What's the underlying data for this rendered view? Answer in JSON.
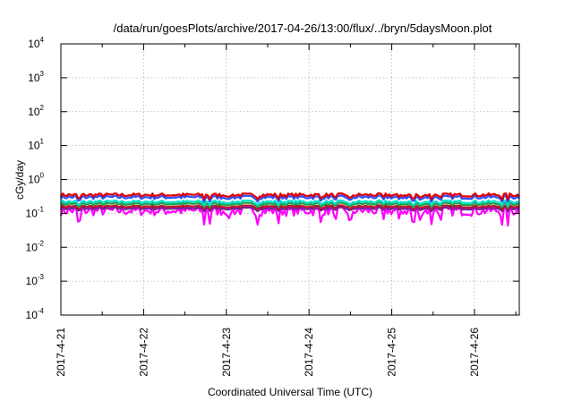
{
  "chart_data": {
    "type": "line",
    "title": "/data/run/goesPlots/archive/2017-04-26/13:00/flux/../bryn/5daysMoon.plot",
    "xlabel": "Coordinated Universal Time (UTC)",
    "ylabel": "cGy/day",
    "yscale": "log",
    "ylim": [
      0.0001,
      10000
    ],
    "xlim": [
      "2017-04-21",
      "2017-04-26 13:00"
    ],
    "x_ticks": [
      "2017-4-21",
      "2017-4-22",
      "2017-4-23",
      "2017-4-24",
      "2017-4-25",
      "2017-4-26"
    ],
    "y_ticks": [
      {
        "value": 0.0001,
        "base": "10",
        "exp": "-4"
      },
      {
        "value": 0.001,
        "base": "10",
        "exp": "-3"
      },
      {
        "value": 0.01,
        "base": "10",
        "exp": "-2"
      },
      {
        "value": 0.1,
        "base": "10",
        "exp": "-1"
      },
      {
        "value": 1,
        "base": "10",
        "exp": "0"
      },
      {
        "value": 10,
        "base": "10",
        "exp": "1"
      },
      {
        "value": 100,
        "base": "10",
        "exp": "2"
      },
      {
        "value": 1000,
        "base": "10",
        "exp": "3"
      },
      {
        "value": 10000,
        "base": "10",
        "exp": "4"
      }
    ],
    "grid": true,
    "legend": "none",
    "series": [
      {
        "color": "#e00000",
        "approx_value": 0.35,
        "spread": 0.12
      },
      {
        "color": "#3050ff",
        "approx_value": 0.3,
        "spread": 0.12
      },
      {
        "color": "#00e0d0",
        "approx_value": 0.22,
        "spread": 0.1
      },
      {
        "color": "#20a040",
        "approx_value": 0.19,
        "spread": 0.09
      },
      {
        "color": "#c01030",
        "approx_value": 0.16,
        "spread": 0.08
      },
      {
        "color": "#7a2090",
        "approx_value": 0.14,
        "spread": 0.08
      },
      {
        "color": "#ff00ff",
        "approx_value": 0.12,
        "spread": 0.3
      }
    ]
  }
}
